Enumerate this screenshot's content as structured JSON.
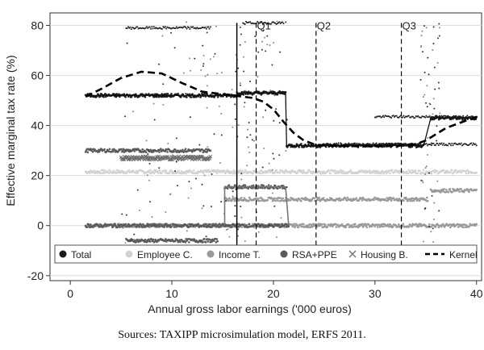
{
  "chart_data": {
    "type": "scatter",
    "xlabel": "Annual gross labor earnings ('000 euros)",
    "ylabel": "Effective marginal tax rate (%)",
    "xlim": [
      -2,
      40.5
    ],
    "ylim": [
      -22,
      85
    ],
    "xticks": [
      0,
      10,
      20,
      30,
      40
    ],
    "yticks": [
      -20,
      0,
      20,
      40,
      60,
      80
    ],
    "grid": "horizontal",
    "legend_position": "bottom",
    "quartiles": [
      {
        "label": "Q1",
        "x": 18.3
      },
      {
        "label": "Q2",
        "x": 24.2
      },
      {
        "label": "Q3",
        "x": 32.6
      }
    ],
    "median_line_x": 16.4,
    "series": [
      {
        "name": "Total",
        "color": "#1a1a1a",
        "marker": "dot",
        "segments": [
          {
            "x0": 1.5,
            "x1": 16.4,
            "y": 52
          },
          {
            "x0": 16.4,
            "x1": 21.2,
            "y": 53
          },
          {
            "x0": 21.3,
            "x1": 34.8,
            "y": 32
          },
          {
            "x0": 35.5,
            "x1": 40,
            "y": 43
          }
        ]
      },
      {
        "name": "Employee C.",
        "color": "#d2d2d2",
        "marker": "dot",
        "segments": [
          {
            "x0": 1.5,
            "x1": 40,
            "y": 21.5
          }
        ]
      },
      {
        "name": "Income T.",
        "color": "#9a9a9a",
        "marker": "dot",
        "segments": [
          {
            "x0": 1.5,
            "x1": 40,
            "y": 0
          },
          {
            "x0": 15.2,
            "x1": 35.2,
            "y": 10.5
          },
          {
            "x0": 35.5,
            "x1": 40,
            "y": 14
          }
        ]
      },
      {
        "name": "RSA+PPE",
        "color": "#5a5a5a",
        "marker": "dot",
        "segments": [
          {
            "x0": 1.5,
            "x1": 13.8,
            "y": 30
          },
          {
            "x0": 15.2,
            "x1": 21.2,
            "y": 15.5
          },
          {
            "x0": 5.5,
            "x1": 14.5,
            "y": -6
          },
          {
            "x0": 1.5,
            "x1": 21.5,
            "y": 0
          }
        ]
      },
      {
        "name": "Housing B.",
        "color": "#6e6e6e",
        "marker": "x",
        "segments": [
          {
            "x0": 5.0,
            "x1": 13.8,
            "y": 27
          }
        ]
      },
      {
        "name": "Kernel",
        "color": "#000000",
        "marker": "dashed-line",
        "x": [
          1.5,
          3,
          5,
          7,
          9,
          11,
          13,
          15,
          17,
          18,
          19,
          20,
          21,
          22,
          23,
          24,
          25,
          27,
          29,
          31,
          33,
          34,
          35,
          36,
          37,
          38,
          39,
          40
        ],
        "y": [
          51.5,
          54.5,
          59,
          61.5,
          60.8,
          57,
          53.5,
          52.5,
          51.5,
          51,
          49.5,
          46.5,
          41.5,
          37,
          34,
          32.5,
          32,
          31.8,
          31.7,
          31.8,
          32,
          32.5,
          34,
          36.5,
          39,
          40.5,
          42,
          43.5
        ]
      }
    ],
    "legend": [
      {
        "label": "Total",
        "color": "#1a1a1a",
        "marker": "dot"
      },
      {
        "label": "Employee C.",
        "color": "#d2d2d2",
        "marker": "dot"
      },
      {
        "label": "Income T.",
        "color": "#9a9a9a",
        "marker": "dot"
      },
      {
        "label": "RSA+PPE",
        "color": "#5a5a5a",
        "marker": "dot"
      },
      {
        "label": "Housing B.",
        "color": "#6e6e6e",
        "marker": "x"
      },
      {
        "label": "Kernel",
        "color": "#000000",
        "marker": "dashed-line"
      }
    ]
  },
  "source_note": "Sources: TAXIPP microsimulation model, ERFS 2011."
}
